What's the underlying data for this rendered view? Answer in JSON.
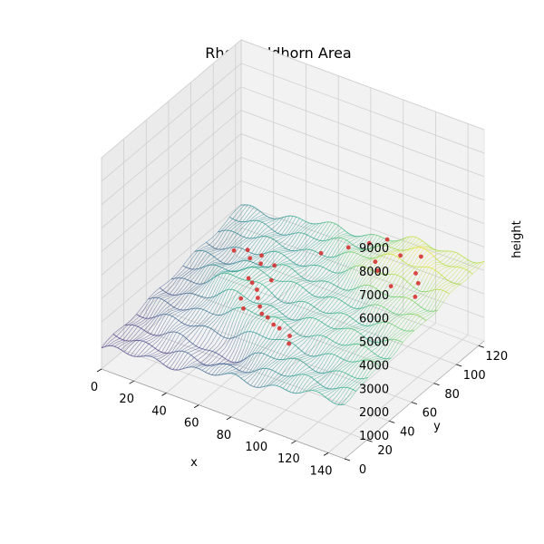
{
  "chart_data": {
    "type": "surface3d",
    "title": "Rheinwaldhorn Area",
    "xlabel": "x",
    "ylabel": "y",
    "zlabel": "height",
    "xlim": [
      0,
      150
    ],
    "ylim": [
      0,
      125
    ],
    "zlim": [
      0,
      9000
    ],
    "x_ticks": [
      0,
      20,
      40,
      60,
      80,
      100,
      120,
      140
    ],
    "y_ticks": [
      0,
      20,
      40,
      60,
      80,
      100,
      120
    ],
    "z_ticks": [
      1000,
      2000,
      3000,
      4000,
      5000,
      6000,
      7000,
      8000,
      9000
    ],
    "grid": true,
    "colormap": "viridis",
    "surface_z_range": [
      600,
      3600
    ],
    "marker_color": "#d62728",
    "peaks": [
      {
        "x": 30,
        "y": 75,
        "z": 2800
      },
      {
        "x": 35,
        "y": 80,
        "z": 2750
      },
      {
        "x": 42,
        "y": 72,
        "z": 2900
      },
      {
        "x": 45,
        "y": 78,
        "z": 2850
      },
      {
        "x": 50,
        "y": 70,
        "z": 2950
      },
      {
        "x": 55,
        "y": 75,
        "z": 2800
      },
      {
        "x": 60,
        "y": 65,
        "z": 2700
      },
      {
        "x": 48,
        "y": 62,
        "z": 2600
      },
      {
        "x": 53,
        "y": 58,
        "z": 2700
      },
      {
        "x": 58,
        "y": 55,
        "z": 2650
      },
      {
        "x": 62,
        "y": 50,
        "z": 2600
      },
      {
        "x": 66,
        "y": 46,
        "z": 2500
      },
      {
        "x": 70,
        "y": 42,
        "z": 2450
      },
      {
        "x": 75,
        "y": 40,
        "z": 2500
      },
      {
        "x": 80,
        "y": 38,
        "z": 2400
      },
      {
        "x": 85,
        "y": 36,
        "z": 2450
      },
      {
        "x": 55,
        "y": 45,
        "z": 2600
      },
      {
        "x": 60,
        "y": 40,
        "z": 2500
      },
      {
        "x": 92,
        "y": 35,
        "z": 2350
      },
      {
        "x": 95,
        "y": 30,
        "z": 2300
      },
      {
        "x": 70,
        "y": 95,
        "z": 2900
      },
      {
        "x": 80,
        "y": 105,
        "z": 3000
      },
      {
        "x": 88,
        "y": 112,
        "z": 3100
      },
      {
        "x": 95,
        "y": 118,
        "z": 3200
      },
      {
        "x": 100,
        "y": 100,
        "z": 3100
      },
      {
        "x": 105,
        "y": 95,
        "z": 3050
      },
      {
        "x": 110,
        "y": 108,
        "z": 3300
      },
      {
        "x": 120,
        "y": 112,
        "z": 3350
      },
      {
        "x": 125,
        "y": 100,
        "z": 3250
      },
      {
        "x": 130,
        "y": 95,
        "z": 3150
      },
      {
        "x": 118,
        "y": 88,
        "z": 3000
      },
      {
        "x": 135,
        "y": 85,
        "z": 3100
      }
    ]
  }
}
